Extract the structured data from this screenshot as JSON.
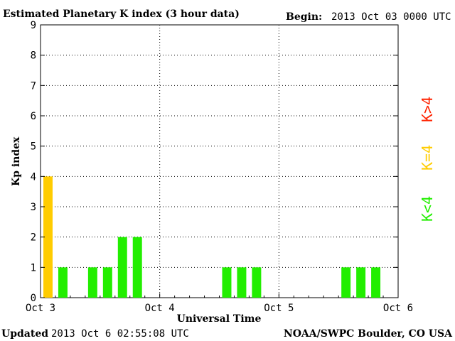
{
  "header": {
    "title": "Estimated Planetary K index (3 hour data)",
    "begin_label": "Begin:",
    "begin_value": "2013 Oct 03 0000 UTC"
  },
  "footer": {
    "updated_label": "Updated",
    "updated_value": "2013 Oct  6 02:55:08 UTC",
    "source": "NOAA/SWPC Boulder, CO USA"
  },
  "legend": {
    "gt": {
      "label": "K>4",
      "color": "#ff2200"
    },
    "eq": {
      "label": "K=4",
      "color": "#ffcc00"
    },
    "lt": {
      "label": "K<4",
      "color": "#22ee00"
    }
  },
  "chart_data": {
    "type": "bar",
    "title": "Estimated Planetary K index (3 hour data)",
    "xlabel": "Universal Time",
    "ylabel": "Kp index",
    "ylim": [
      0,
      9
    ],
    "yticks": [
      0,
      1,
      2,
      3,
      4,
      5,
      6,
      7,
      8,
      9
    ],
    "x_tick_labels": [
      "Oct 3",
      "Oct 4",
      "Oct 5",
      "Oct 6"
    ],
    "bins_per_day": 8,
    "grid": true,
    "series": [
      {
        "values": [
          4,
          1,
          null,
          1,
          1,
          2,
          2,
          null,
          null,
          null,
          null,
          null,
          1,
          1,
          1,
          null,
          null,
          null,
          null,
          null,
          1,
          1,
          1,
          null
        ]
      }
    ],
    "colors": {
      "below4": "#22ee00",
      "equal4": "#ffcc00",
      "above4": "#ff2200"
    }
  }
}
